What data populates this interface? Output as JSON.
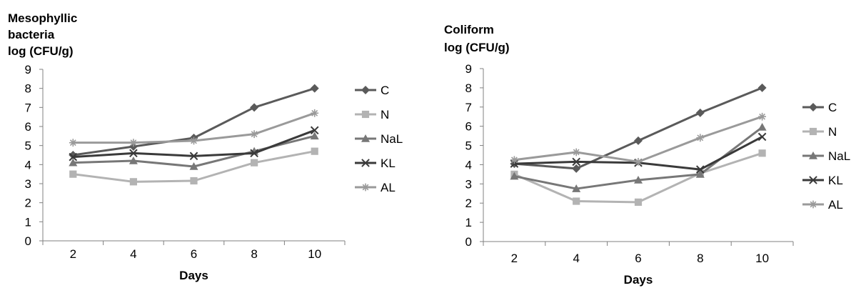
{
  "chart_data": [
    {
      "type": "line",
      "title_lines": [
        "Mesophyllic",
        "bacteria",
        "log (CFU/g)"
      ],
      "xlabel": "Days",
      "ylabel": "",
      "x": [
        2,
        4,
        6,
        8,
        10
      ],
      "ylim": [
        0,
        9
      ],
      "yticks": [
        0,
        1,
        2,
        3,
        4,
        5,
        6,
        7,
        8,
        9
      ],
      "grid": false,
      "legend_position": "right",
      "series": [
        {
          "name": "C",
          "marker": "diamond",
          "color": "#5a5a5a",
          "values": [
            4.5,
            4.95,
            5.4,
            7.0,
            8.0
          ]
        },
        {
          "name": "N",
          "marker": "square",
          "color": "#b3b3b3",
          "values": [
            3.5,
            3.1,
            3.15,
            4.1,
            4.7
          ]
        },
        {
          "name": "NaL",
          "marker": "triangle",
          "color": "#777777",
          "values": [
            4.1,
            4.2,
            3.9,
            4.7,
            5.5
          ]
        },
        {
          "name": "KL",
          "marker": "x",
          "color": "#3a3a3a",
          "values": [
            4.4,
            4.6,
            4.45,
            4.6,
            5.8
          ]
        },
        {
          "name": "AL",
          "marker": "asterisk",
          "color": "#9a9a9a",
          "values": [
            5.15,
            5.15,
            5.25,
            5.6,
            6.7
          ]
        }
      ]
    },
    {
      "type": "line",
      "title_lines": [
        "Coliform",
        "log (CFU/g)"
      ],
      "xlabel": "Days",
      "ylabel": "",
      "x": [
        2,
        4,
        6,
        8,
        10
      ],
      "ylim": [
        0,
        9
      ],
      "yticks": [
        0,
        1,
        2,
        3,
        4,
        5,
        6,
        7,
        8,
        9
      ],
      "grid": false,
      "legend_position": "right",
      "series": [
        {
          "name": "C",
          "marker": "diamond",
          "color": "#5a5a5a",
          "values": [
            4.05,
            3.8,
            5.25,
            6.7,
            8.0
          ]
        },
        {
          "name": "N",
          "marker": "square",
          "color": "#b3b3b3",
          "values": [
            3.5,
            2.1,
            2.05,
            3.55,
            4.6
          ]
        },
        {
          "name": "NaL",
          "marker": "triangle",
          "color": "#777777",
          "values": [
            3.4,
            2.75,
            3.2,
            3.5,
            5.95
          ]
        },
        {
          "name": "KL",
          "marker": "x",
          "color": "#3a3a3a",
          "values": [
            4.05,
            4.15,
            4.1,
            3.75,
            5.45
          ]
        },
        {
          "name": "AL",
          "marker": "asterisk",
          "color": "#9a9a9a",
          "values": [
            4.25,
            4.65,
            4.15,
            5.4,
            6.5
          ]
        }
      ]
    }
  ]
}
